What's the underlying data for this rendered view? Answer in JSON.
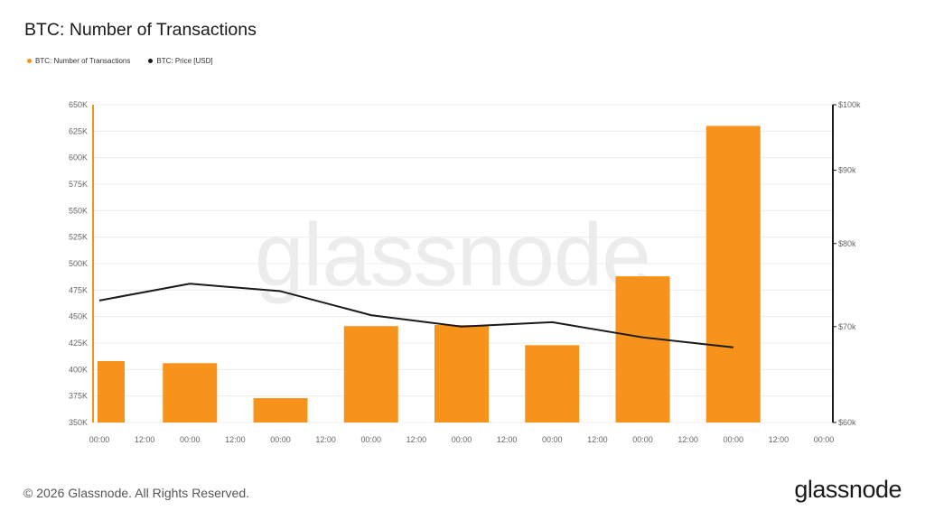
{
  "header": {
    "title": "BTC: Number of Transactions"
  },
  "legend": [
    {
      "label": "BTC: Number of Transactions",
      "color": "#f7931a"
    },
    {
      "label": "BTC: Price [USD]",
      "color": "#1a1a1a"
    }
  ],
  "watermark": "glassnode",
  "footer": {
    "copyright": "© 2026 Glassnode. All Rights Reserved.",
    "logo": "glassnode"
  },
  "colors": {
    "bar": "#f7931a",
    "line": "#1a1a1a",
    "grid": "#ececec",
    "axis_text": "#666666"
  },
  "chart_data": {
    "type": "bar",
    "title": "BTC: Number of Transactions",
    "x_ticks": [
      "00:00",
      "12:00",
      "00:00",
      "12:00",
      "00:00",
      "12:00",
      "00:00",
      "12:00",
      "00:00",
      "12:00",
      "00:00",
      "12:00",
      "00:00",
      "12:00",
      "00:00",
      "12:00",
      "00:00"
    ],
    "y_left_ticks": [
      "350K",
      "375K",
      "400K",
      "425K",
      "450K",
      "475K",
      "500K",
      "525K",
      "550K",
      "575K",
      "600K",
      "625K",
      "650K"
    ],
    "y_right_ticks": [
      "$60k",
      "$70k",
      "$80k",
      "$90k",
      "$100k"
    ],
    "ylim_left": [
      350000,
      650000
    ],
    "ylim_right": [
      60000,
      100000
    ],
    "y_right_scale": "log",
    "grid": true,
    "legend_placement": "top-left",
    "series": [
      {
        "name": "BTC: Number of Transactions",
        "type": "bar",
        "axis": "left",
        "x": [
          0.02,
          2.0,
          4.0,
          6.0,
          8.0,
          10.0,
          12.0,
          14.0
        ],
        "values": [
          408000,
          406000,
          373000,
          441000,
          442000,
          423000,
          488000,
          630000
        ]
      },
      {
        "name": "BTC: Price [USD]",
        "type": "line",
        "axis": "right",
        "x": [
          0.0,
          2.0,
          4.0,
          6.0,
          8.0,
          10.0,
          12.0,
          14.0
        ],
        "values": [
          73000,
          75000,
          74100,
          71300,
          70000,
          70500,
          68800,
          67700
        ]
      }
    ]
  }
}
